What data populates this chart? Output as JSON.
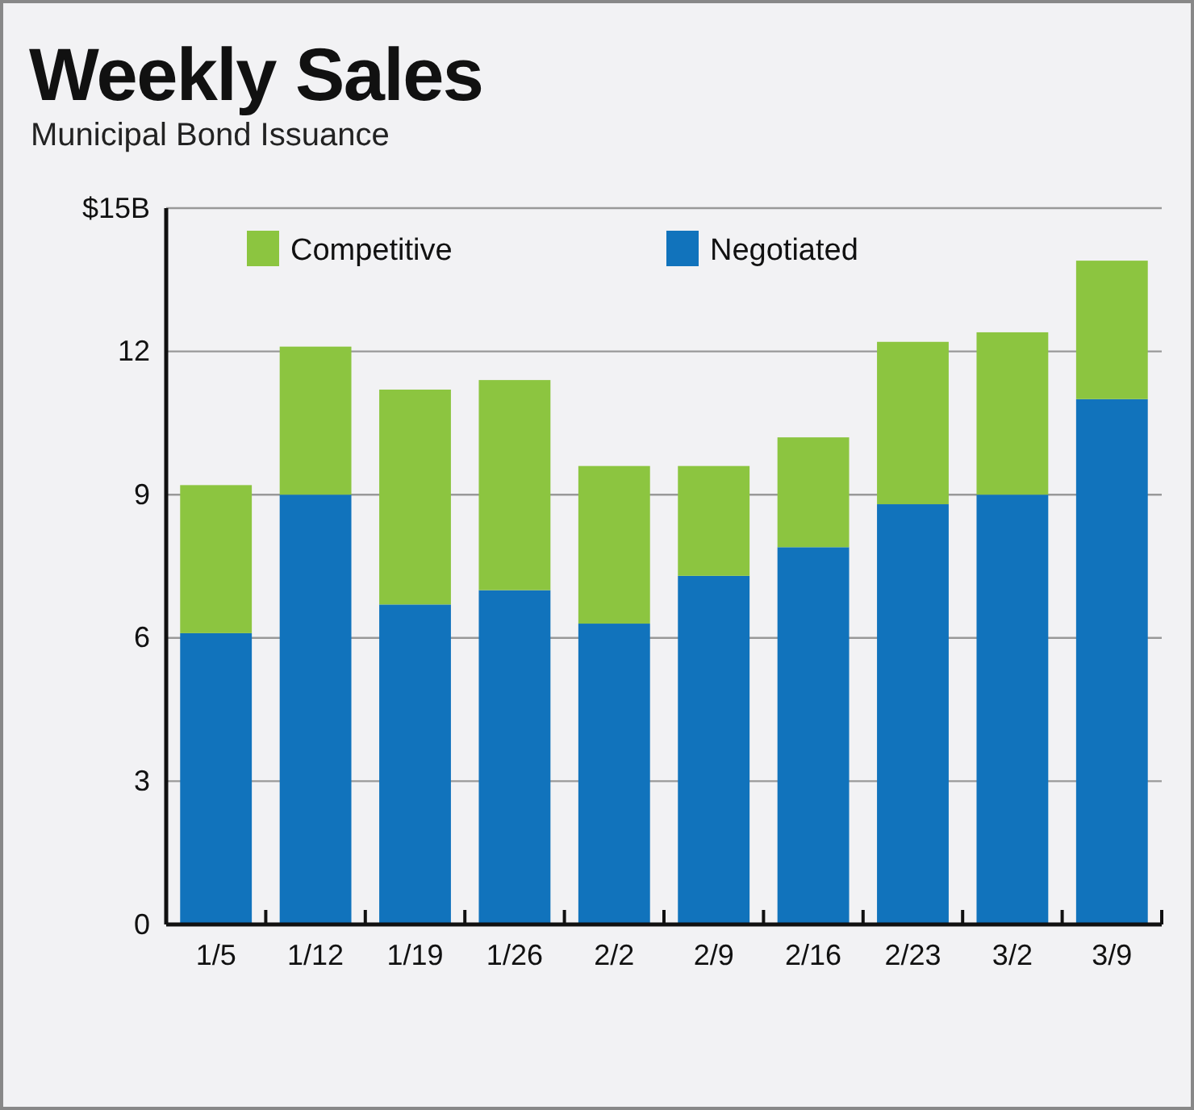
{
  "chart_data": {
    "type": "bar",
    "title": "Weekly Sales",
    "subtitle": "Municipal Bond Issuance",
    "categories": [
      "1/5",
      "1/12",
      "1/19",
      "1/26",
      "2/2",
      "2/9",
      "2/16",
      "2/23",
      "3/2",
      "3/9"
    ],
    "series": [
      {
        "name": "Negotiated",
        "color": "#1173bc",
        "values": [
          6.1,
          9.0,
          6.7,
          7.0,
          6.3,
          7.3,
          7.9,
          8.8,
          9.0,
          11.0
        ]
      },
      {
        "name": "Competitive",
        "color": "#8cc540",
        "values": [
          3.1,
          3.1,
          4.5,
          4.4,
          3.3,
          2.3,
          2.3,
          3.4,
          3.4,
          2.9
        ]
      }
    ],
    "stacked": true,
    "ylim": [
      0,
      15
    ],
    "yticks": [
      0,
      3,
      6,
      9,
      12,
      {
        "value": 15,
        "label": "$15B"
      }
    ],
    "grid": "y",
    "legend": "top left"
  }
}
